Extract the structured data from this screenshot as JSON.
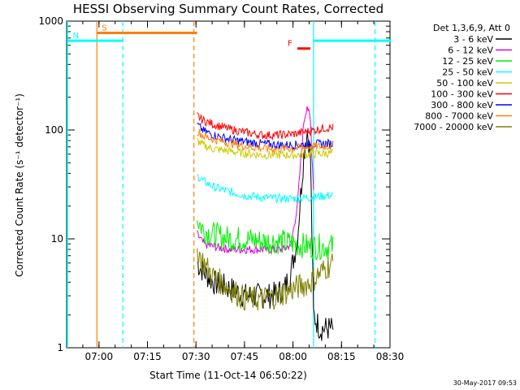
{
  "chart_data": {
    "type": "line",
    "title": "HESSI Observing Summary Count Rates, Corrected",
    "xlabel": "Start Time (11-Oct-14 06:50:22)",
    "ylabel": "Corrected Count Rate (s⁻¹ detector⁻¹)",
    "yscale": "log",
    "ylim": [
      1,
      1000
    ],
    "xlim": [
      "06:50:22",
      "08:30:00"
    ],
    "x_ticks": [
      "07:00",
      "07:15",
      "07:30",
      "07:45",
      "08:00",
      "08:15",
      "08:30"
    ],
    "y_ticks": [
      "1",
      "10",
      "100",
      "1000"
    ],
    "legend_title": "Det 1,3,6,9, Att 0",
    "legend_position": "right",
    "footer_date": "30-May-2017 09:53",
    "x_unit": "minutes after 06:50:22",
    "series": [
      {
        "name": "3 - 6 keV",
        "color": "#000000",
        "x": [
          40,
          42,
          45,
          50,
          55,
          60,
          63,
          65,
          67,
          69,
          71,
          72,
          73,
          74,
          75,
          76,
          78,
          80,
          82
        ],
        "values": [
          6,
          5,
          4,
          3.5,
          3,
          3,
          3,
          3.2,
          3.5,
          5,
          10,
          25,
          60,
          100,
          60,
          2,
          1.5,
          1.5,
          1.5
        ]
      },
      {
        "name": "6 - 12 keV",
        "color": "#e000e0",
        "x": [
          40,
          42,
          45,
          50,
          55,
          60,
          63,
          65,
          67,
          69,
          71,
          72,
          73,
          74,
          75,
          76
        ],
        "values": [
          11,
          9,
          8.5,
          8,
          8,
          8,
          8,
          8,
          8,
          9,
          20,
          50,
          120,
          170,
          120,
          30
        ]
      },
      {
        "name": "12 - 25 keV",
        "color": "#00ee00",
        "x": [
          40,
          42,
          45,
          50,
          55,
          60,
          65,
          70,
          75,
          80,
          82
        ],
        "values": [
          15,
          12,
          11,
          10,
          10,
          9.5,
          9.5,
          9,
          8.5,
          8.5,
          8.5
        ]
      },
      {
        "name": "25 - 50 keV",
        "color": "#00ffff",
        "x": [
          40,
          42,
          45,
          50,
          55,
          60,
          65,
          70,
          75,
          80,
          82
        ],
        "values": [
          38,
          34,
          30,
          27,
          25,
          24,
          23.5,
          23.5,
          24,
          25,
          25
        ]
      },
      {
        "name": "50 - 100 keV",
        "color": "#cccc00",
        "x": [
          40,
          42,
          45,
          50,
          55,
          60,
          65,
          70,
          75,
          80,
          82
        ],
        "values": [
          80,
          72,
          67,
          64,
          61,
          59,
          59,
          59,
          60,
          61,
          61
        ]
      },
      {
        "name": "100 - 300 keV",
        "color": "#ff0000",
        "x": [
          40,
          42,
          45,
          50,
          55,
          60,
          65,
          70,
          75,
          80,
          82
        ],
        "values": [
          135,
          122,
          113,
          102,
          95,
          90,
          90,
          92,
          98,
          105,
          105
        ]
      },
      {
        "name": "300 - 800 keV",
        "color": "#0000ff",
        "x": [
          40,
          42,
          45,
          50,
          55,
          60,
          65,
          70,
          75,
          80,
          82
        ],
        "values": [
          112,
          98,
          90,
          82,
          78,
          75,
          73,
          73,
          74,
          75,
          75
        ]
      },
      {
        "name": "800 - 7000 keV",
        "color": "#ff8000",
        "x": [
          40,
          42,
          45,
          50,
          55,
          60,
          65,
          70,
          75,
          80,
          82
        ],
        "values": [
          98,
          88,
          82,
          76,
          71,
          68,
          67,
          68,
          70,
          71,
          71
        ]
      },
      {
        "name": "7000 - 20000 keV",
        "color": "#808000",
        "x": [
          40,
          42,
          45,
          50,
          55,
          60,
          65,
          70,
          75,
          80,
          82
        ],
        "values": [
          8,
          6,
          4.5,
          3.5,
          2.8,
          2.8,
          3,
          3.5,
          4,
          5.5,
          6
        ]
      }
    ],
    "annotations": [
      {
        "label": "S",
        "color": "#ff8000",
        "x_start": 9,
        "x_end": 40,
        "y": 780
      },
      {
        "label": "N",
        "color": "#00ffff",
        "x_start": 0,
        "x_end": 17,
        "y": 660
      },
      {
        "label": "F",
        "color": "#ff0000",
        "x_start": 71,
        "x_end": 75,
        "y": 560
      },
      {
        "label": "",
        "color": "#00ffff",
        "x_start": 76,
        "x_end": 100,
        "y": 660
      }
    ],
    "vlines": [
      {
        "x": 9,
        "color": "#ff8000",
        "style": "solid"
      },
      {
        "x": 17,
        "color": "#00ffff",
        "style": "dashed"
      },
      {
        "x": 39,
        "color": "#ff8000",
        "style": "dashed"
      },
      {
        "x": 76,
        "color": "#00ffff",
        "style": "solid"
      },
      {
        "x": 95,
        "color": "#00ffff",
        "style": "dashed"
      }
    ]
  }
}
